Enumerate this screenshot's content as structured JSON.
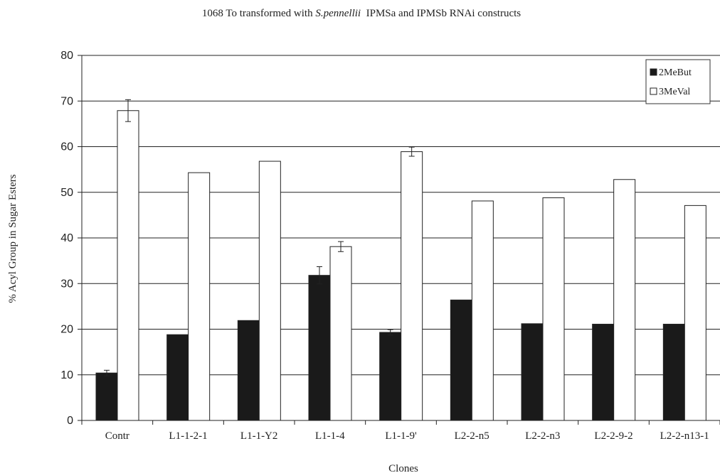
{
  "chart_data": {
    "type": "bar",
    "title": {
      "prefix": "1068 To transformed with ",
      "italic": "S.pennellii",
      "suffix": "  IPMSa and IPMSb RNAi constructs"
    },
    "xlabel": "Clones",
    "ylabel": "% Acyl Group in Sugar Esters",
    "ylim": [
      0,
      80
    ],
    "yticks": [
      0,
      10,
      20,
      30,
      40,
      50,
      60,
      70,
      80
    ],
    "grid": true,
    "legend_position": "top-right",
    "categories": [
      "Contr",
      "L1-1-2-1",
      "L1-1-Y2",
      "L1-1-4",
      "L1-1-9'",
      "L2-2-n5",
      "L2-2-n3",
      "L2-2-9-2",
      "L2-2-n13-1"
    ],
    "series": [
      {
        "name": "2MeBut",
        "color": "#1a1a1a",
        "values": [
          10.4,
          18.8,
          21.9,
          31.8,
          19.3,
          26.4,
          21.2,
          21.1,
          21.1
        ],
        "errors": [
          0.6,
          null,
          null,
          1.9,
          0.6,
          null,
          null,
          null,
          null
        ]
      },
      {
        "name": "3MeVal",
        "color": "#ffffff",
        "values": [
          67.9,
          54.3,
          56.8,
          38.1,
          58.9,
          48.1,
          48.8,
          52.8,
          47.1
        ],
        "errors": [
          2.4,
          null,
          null,
          1.1,
          1.0,
          null,
          null,
          null,
          null
        ]
      }
    ]
  }
}
